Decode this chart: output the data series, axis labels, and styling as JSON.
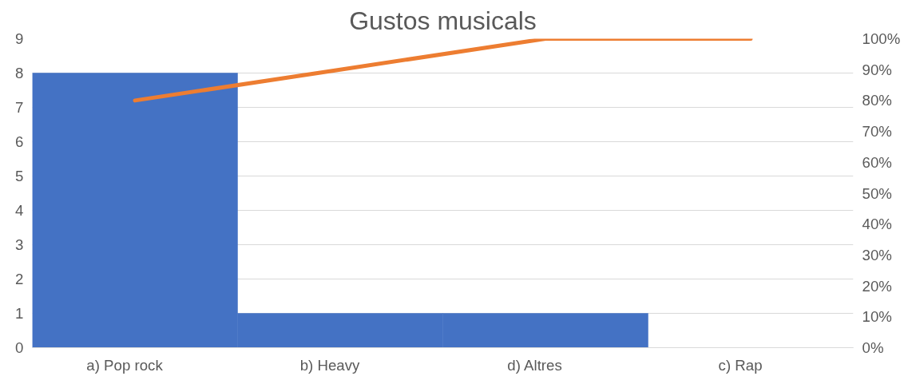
{
  "chart_data": {
    "type": "bar",
    "title": "Gustos musicals",
    "categories": [
      "a)      Pop rock",
      "b)      Heavy",
      "d)      Altres",
      "c)      Rap"
    ],
    "series": [
      {
        "color": "#4472c4",
        "values": [
          8,
          1,
          1,
          0
        ]
      },
      {
        "type": "line",
        "color": "#ed7d31",
        "axis": "y2",
        "values": [
          80,
          90,
          100,
          100
        ]
      }
    ],
    "ylim": [
      0,
      9
    ],
    "yticks": [
      0,
      1,
      2,
      3,
      4,
      5,
      6,
      7,
      8,
      9
    ],
    "y2lim": [
      0,
      100
    ],
    "y2ticks": [
      {
        "value": 0,
        "label": "0%"
      },
      {
        "value": 10,
        "label": "10%"
      },
      {
        "value": 20,
        "label": "20%"
      },
      {
        "value": 30,
        "label": "30%"
      },
      {
        "value": 40,
        "label": "40%"
      },
      {
        "value": 50,
        "label": "50%"
      },
      {
        "value": 60,
        "label": "60%"
      },
      {
        "value": 70,
        "label": "70%"
      },
      {
        "value": 80,
        "label": "80%"
      },
      {
        "value": 90,
        "label": "90%"
      },
      {
        "value": 100,
        "label": "100%"
      }
    ],
    "grid": "y",
    "marker": "none",
    "line_style": "solid"
  }
}
